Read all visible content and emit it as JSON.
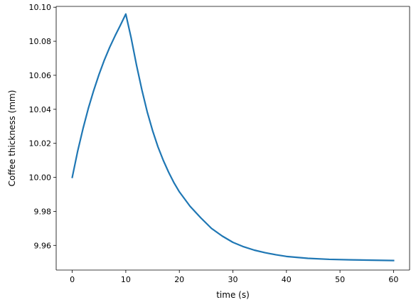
{
  "chart_data": {
    "type": "line",
    "xlabel": "time (s)",
    "ylabel": "Coffee thickness (mm)",
    "xlim": [
      -3,
      63
    ],
    "ylim": [
      9.9455,
      10.1005
    ],
    "x_ticks": [
      0,
      10,
      20,
      30,
      40,
      50,
      60
    ],
    "x_tick_labels": [
      "0",
      "10",
      "20",
      "30",
      "40",
      "50",
      "60"
    ],
    "y_ticks": [
      9.96,
      9.98,
      10.0,
      10.02,
      10.04,
      10.06,
      10.08,
      10.1
    ],
    "y_tick_labels": [
      "9.96",
      "9.98",
      "10.00",
      "10.02",
      "10.04",
      "10.06",
      "10.08",
      "10.10"
    ],
    "grid": false,
    "series": [
      {
        "color": "#1f77b4",
        "x": [
          0,
          1,
          2,
          3,
          4,
          5,
          6,
          7,
          8,
          9,
          10,
          11,
          12,
          13,
          14,
          15,
          16,
          17,
          18,
          19,
          20,
          22,
          24,
          26,
          28,
          30,
          32,
          34,
          36,
          38,
          40,
          44,
          48,
          52,
          56,
          60
        ],
        "y": [
          10.0,
          10.0152,
          10.0285,
          10.0405,
          10.051,
          10.0605,
          10.069,
          10.0765,
          10.0832,
          10.0895,
          10.096,
          10.082,
          10.066,
          10.0515,
          10.0385,
          10.0275,
          10.018,
          10.01,
          10.003,
          9.9968,
          9.9915,
          9.983,
          9.9762,
          9.97,
          9.9655,
          9.9618,
          9.9592,
          9.9572,
          9.9557,
          9.9545,
          9.9535,
          9.9524,
          9.9518,
          9.9515,
          9.9513,
          9.9511
        ]
      }
    ]
  }
}
